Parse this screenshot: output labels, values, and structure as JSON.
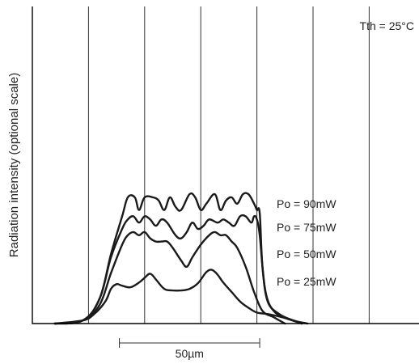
{
  "chart_data": {
    "type": "line",
    "title": "",
    "xlabel": "",
    "ylabel": "Radiation intensity (optional scale)",
    "annotation": "Tth = 25°C",
    "scale_bar_label": "50µm",
    "scale_bar_length": 50,
    "xlim": [
      0,
      120
    ],
    "ylim": [
      0,
      100
    ],
    "grid": "vertical",
    "x_gridlines": [
      20,
      40,
      60,
      80,
      100,
      120
    ],
    "series": [
      {
        "name": "Po = 90mW",
        "points": [
          [
            8,
            0
          ],
          [
            18,
            1
          ],
          [
            24,
            8
          ],
          [
            28,
            22
          ],
          [
            32,
            34
          ],
          [
            34,
            40
          ],
          [
            36.5,
            40
          ],
          [
            38,
            36
          ],
          [
            40,
            40
          ],
          [
            43,
            40
          ],
          [
            45,
            39
          ],
          [
            47,
            36
          ],
          [
            49,
            40
          ],
          [
            51,
            37
          ],
          [
            53,
            36
          ],
          [
            56,
            41
          ],
          [
            58,
            40
          ],
          [
            60,
            36
          ],
          [
            62,
            38
          ],
          [
            65,
            41
          ],
          [
            67,
            36
          ],
          [
            69,
            39
          ],
          [
            71,
            40
          ],
          [
            73,
            38
          ],
          [
            75,
            41
          ],
          [
            77,
            41
          ],
          [
            79,
            38
          ],
          [
            80,
            36
          ],
          [
            81,
            35
          ],
          [
            82,
            18
          ],
          [
            84,
            7
          ],
          [
            88,
            3
          ],
          [
            93,
            1
          ],
          [
            98,
            0
          ]
        ]
      },
      {
        "name": "Po = 75mW",
        "points": [
          [
            8,
            0
          ],
          [
            18,
            1
          ],
          [
            24,
            8
          ],
          [
            28,
            21
          ],
          [
            32,
            30
          ],
          [
            34,
            33
          ],
          [
            36,
            34
          ],
          [
            38,
            32
          ],
          [
            40,
            34
          ],
          [
            42,
            33
          ],
          [
            44,
            31
          ],
          [
            46,
            33
          ],
          [
            48,
            32
          ],
          [
            51,
            28
          ],
          [
            53,
            27
          ],
          [
            55,
            29
          ],
          [
            57,
            32
          ],
          [
            59,
            30
          ],
          [
            61,
            31
          ],
          [
            63,
            33
          ],
          [
            66,
            32
          ],
          [
            68,
            33
          ],
          [
            70,
            32
          ],
          [
            72,
            31
          ],
          [
            74,
            34
          ],
          [
            76,
            34
          ],
          [
            78,
            32
          ],
          [
            79,
            34
          ],
          [
            80,
            33
          ],
          [
            81,
            28
          ],
          [
            83,
            10
          ],
          [
            86,
            4
          ],
          [
            90,
            2
          ],
          [
            96,
            0
          ]
        ]
      },
      {
        "name": "Po = 50mW",
        "points": [
          [
            8,
            0
          ],
          [
            18,
            1
          ],
          [
            24,
            6
          ],
          [
            28,
            16
          ],
          [
            32,
            25
          ],
          [
            34,
            28
          ],
          [
            36,
            29
          ],
          [
            38,
            28
          ],
          [
            40,
            29
          ],
          [
            42,
            27
          ],
          [
            44,
            26
          ],
          [
            46,
            26
          ],
          [
            48,
            26
          ],
          [
            50,
            24
          ],
          [
            53,
            20
          ],
          [
            55,
            18
          ],
          [
            57,
            21
          ],
          [
            60,
            25
          ],
          [
            63,
            28
          ],
          [
            65,
            29
          ],
          [
            67,
            28
          ],
          [
            69,
            28
          ],
          [
            71,
            26
          ],
          [
            73,
            24
          ],
          [
            76,
            18
          ],
          [
            79,
            10
          ],
          [
            82,
            4
          ],
          [
            86,
            2
          ],
          [
            90,
            0
          ]
        ]
      },
      {
        "name": "Po = 25mW",
        "points": [
          [
            8,
            0
          ],
          [
            18,
            1
          ],
          [
            22,
            3
          ],
          [
            26,
            7
          ],
          [
            28,
            11
          ],
          [
            30,
            12.5
          ],
          [
            32,
            12
          ],
          [
            35,
            11.5
          ],
          [
            38,
            13
          ],
          [
            40,
            14.5
          ],
          [
            42,
            15.8
          ],
          [
            44,
            14
          ],
          [
            47,
            11
          ],
          [
            50,
            10.5
          ],
          [
            53,
            10.5
          ],
          [
            56,
            11
          ],
          [
            59,
            12.8
          ],
          [
            62,
            16.3
          ],
          [
            64,
            17
          ],
          [
            66,
            15.5
          ],
          [
            68,
            13
          ],
          [
            71,
            10
          ],
          [
            74,
            7
          ],
          [
            77,
            5
          ],
          [
            80,
            3.5
          ],
          [
            84,
            3
          ],
          [
            89,
            2
          ],
          [
            96,
            0
          ]
        ]
      }
    ]
  }
}
